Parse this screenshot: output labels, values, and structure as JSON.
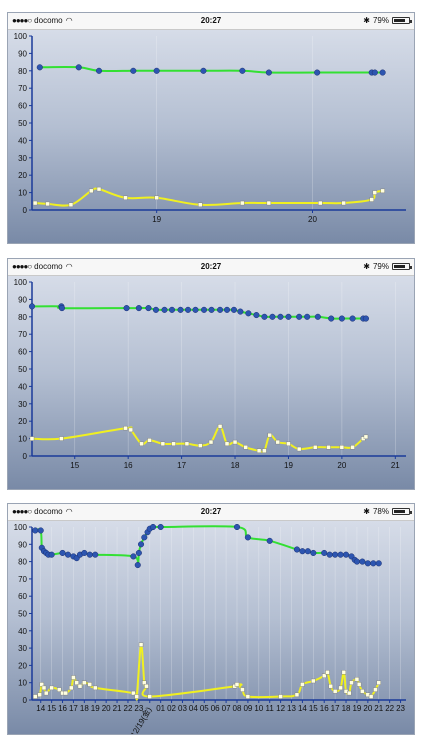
{
  "phones": [
    {
      "carrier": "docomo",
      "time": "20:27",
      "battery": "79%",
      "battery_level": 0.79
    },
    {
      "carrier": "docomo",
      "time": "20:27",
      "battery": "79%",
      "battery_level": 0.79
    },
    {
      "carrier": "docomo",
      "time": "20:27",
      "battery": "78%",
      "battery_level": 0.78
    }
  ],
  "colors": {
    "upper_line": "#33e033",
    "lower_line": "#f0f020",
    "marker_upper": "#2d55b0",
    "marker_lower": "#ffffe0",
    "axis": "#1a3a9a"
  },
  "chart_data": [
    {
      "type": "line",
      "ylim": [
        0,
        100
      ],
      "yticks": [
        0,
        10,
        20,
        30,
        40,
        50,
        60,
        70,
        80,
        90,
        100
      ],
      "xlim": [
        18.2,
        20.6
      ],
      "xticks": [
        {
          "x": 19,
          "label": "19"
        },
        {
          "x": 20,
          "label": "20"
        }
      ],
      "grid": true,
      "series": [
        {
          "points": [
            [
              18.25,
              82
            ],
            [
              18.5,
              82
            ],
            [
              18.63,
              80
            ],
            [
              18.85,
              80
            ],
            [
              19.0,
              80
            ],
            [
              19.3,
              80
            ],
            [
              19.55,
              80
            ],
            [
              19.72,
              79
            ],
            [
              20.03,
              79
            ],
            [
              20.38,
              79
            ],
            [
              20.4,
              79
            ],
            [
              20.45,
              79
            ]
          ]
        },
        {
          "points": [
            [
              18.22,
              4
            ],
            [
              18.3,
              3.5
            ],
            [
              18.45,
              3
            ],
            [
              18.58,
              11
            ],
            [
              18.63,
              12
            ],
            [
              18.8,
              7
            ],
            [
              19.0,
              7
            ],
            [
              19.28,
              3
            ],
            [
              19.55,
              4
            ],
            [
              19.72,
              4
            ],
            [
              20.05,
              4
            ],
            [
              20.2,
              4
            ],
            [
              20.38,
              6
            ],
            [
              20.4,
              10
            ],
            [
              20.45,
              11
            ]
          ]
        }
      ]
    },
    {
      "type": "line",
      "ylim": [
        0,
        100
      ],
      "yticks": [
        0,
        10,
        20,
        30,
        40,
        50,
        60,
        70,
        80,
        90,
        100
      ],
      "xlim": [
        14.2,
        21.2
      ],
      "xticks": [
        {
          "x": 15,
          "label": "15"
        },
        {
          "x": 16,
          "label": "16"
        },
        {
          "x": 17,
          "label": "17"
        },
        {
          "x": 18,
          "label": "18"
        },
        {
          "x": 19,
          "label": "19"
        },
        {
          "x": 20,
          "label": "20"
        },
        {
          "x": 21,
          "label": "21"
        }
      ],
      "grid": true,
      "series": [
        {
          "points": [
            [
              14.2,
              86
            ],
            [
              14.75,
              86
            ],
            [
              14.76,
              85
            ],
            [
              15.97,
              85
            ],
            [
              16.2,
              85
            ],
            [
              16.38,
              85
            ],
            [
              16.52,
              84
            ],
            [
              16.68,
              84
            ],
            [
              16.82,
              84
            ],
            [
              16.98,
              84
            ],
            [
              17.12,
              84
            ],
            [
              17.26,
              84
            ],
            [
              17.42,
              84
            ],
            [
              17.56,
              84
            ],
            [
              17.72,
              84
            ],
            [
              17.85,
              84
            ],
            [
              17.98,
              84
            ],
            [
              18.1,
              83
            ],
            [
              18.25,
              82
            ],
            [
              18.4,
              81
            ],
            [
              18.55,
              80
            ],
            [
              18.7,
              80
            ],
            [
              18.85,
              80
            ],
            [
              19.0,
              80
            ],
            [
              19.2,
              80
            ],
            [
              19.35,
              80
            ],
            [
              19.55,
              80
            ],
            [
              19.8,
              79
            ],
            [
              20.0,
              79
            ],
            [
              20.2,
              79
            ],
            [
              20.4,
              79
            ],
            [
              20.45,
              79
            ]
          ]
        },
        {
          "points": [
            [
              14.2,
              10
            ],
            [
              14.75,
              10
            ],
            [
              15.95,
              16
            ],
            [
              16.05,
              15
            ],
            [
              16.25,
              7
            ],
            [
              16.4,
              9
            ],
            [
              16.65,
              7
            ],
            [
              16.85,
              7
            ],
            [
              17.1,
              7
            ],
            [
              17.35,
              6
            ],
            [
              17.55,
              8
            ],
            [
              17.72,
              17
            ],
            [
              17.85,
              7
            ],
            [
              18.0,
              8
            ],
            [
              18.2,
              5
            ],
            [
              18.45,
              3
            ],
            [
              18.55,
              3
            ],
            [
              18.65,
              12
            ],
            [
              18.8,
              8
            ],
            [
              19.0,
              7
            ],
            [
              19.2,
              4
            ],
            [
              19.5,
              5
            ],
            [
              19.75,
              5
            ],
            [
              20.0,
              5
            ],
            [
              20.2,
              5
            ],
            [
              20.4,
              10
            ],
            [
              20.45,
              11
            ]
          ]
        }
      ]
    },
    {
      "type": "line",
      "ylim": [
        0,
        100
      ],
      "yticks": [
        0,
        10,
        20,
        30,
        40,
        50,
        60,
        70,
        80,
        90,
        100
      ],
      "xlim": [
        13.2,
        47.5
      ],
      "xticks": [
        {
          "x": 14,
          "label": "14"
        },
        {
          "x": 15,
          "label": "15"
        },
        {
          "x": 16,
          "label": "16"
        },
        {
          "x": 17,
          "label": "17"
        },
        {
          "x": 18,
          "label": "18"
        },
        {
          "x": 19,
          "label": "19"
        },
        {
          "x": 20,
          "label": "20"
        },
        {
          "x": 21,
          "label": "21"
        },
        {
          "x": 22,
          "label": "22"
        },
        {
          "x": 23,
          "label": "23"
        },
        {
          "x": 24,
          "label": "12/19(金)"
        },
        {
          "x": 25,
          "label": "01"
        },
        {
          "x": 26,
          "label": "02"
        },
        {
          "x": 27,
          "label": "03"
        },
        {
          "x": 28,
          "label": "04"
        },
        {
          "x": 29,
          "label": "05"
        },
        {
          "x": 30,
          "label": "06"
        },
        {
          "x": 31,
          "label": "07"
        },
        {
          "x": 32,
          "label": "08"
        },
        {
          "x": 33,
          "label": "09"
        },
        {
          "x": 34,
          "label": "10"
        },
        {
          "x": 35,
          "label": "11"
        },
        {
          "x": 36,
          "label": "12"
        },
        {
          "x": 37,
          "label": "13"
        },
        {
          "x": 38,
          "label": "14"
        },
        {
          "x": 39,
          "label": "15"
        },
        {
          "x": 40,
          "label": "16"
        },
        {
          "x": 41,
          "label": "17"
        },
        {
          "x": 42,
          "label": "18"
        },
        {
          "x": 43,
          "label": "19"
        },
        {
          "x": 44,
          "label": "20"
        },
        {
          "x": 45,
          "label": "21"
        },
        {
          "x": 46,
          "label": "22"
        },
        {
          "x": 47,
          "label": "23"
        }
      ],
      "grid": true,
      "series": [
        {
          "points": [
            [
              13.5,
              98
            ],
            [
              14.0,
              98
            ],
            [
              14.1,
              88
            ],
            [
              14.3,
              86
            ],
            [
              14.5,
              85
            ],
            [
              14.7,
              84
            ],
            [
              15.0,
              84
            ],
            [
              16.0,
              85
            ],
            [
              16.5,
              84
            ],
            [
              17.0,
              83
            ],
            [
              17.3,
              82
            ],
            [
              17.6,
              84
            ],
            [
              18.0,
              85
            ],
            [
              18.5,
              84
            ],
            [
              19.0,
              84
            ],
            [
              22.5,
              83
            ],
            [
              22.9,
              78
            ],
            [
              23.0,
              85
            ],
            [
              23.2,
              90
            ],
            [
              23.5,
              94
            ],
            [
              23.8,
              97
            ],
            [
              24.0,
              99
            ],
            [
              24.3,
              100
            ],
            [
              25.0,
              100
            ],
            [
              32.0,
              100
            ],
            [
              33.0,
              94
            ],
            [
              35.0,
              92
            ],
            [
              37.5,
              87
            ],
            [
              38.0,
              86
            ],
            [
              38.5,
              86
            ],
            [
              39.0,
              85
            ],
            [
              40.0,
              85
            ],
            [
              40.5,
              84
            ],
            [
              41.0,
              84
            ],
            [
              41.5,
              84
            ],
            [
              42.0,
              84
            ],
            [
              42.5,
              83
            ],
            [
              42.8,
              81
            ],
            [
              43.0,
              80
            ],
            [
              43.5,
              80
            ],
            [
              44.0,
              79
            ],
            [
              44.5,
              79
            ],
            [
              45.0,
              79
            ]
          ]
        },
        {
          "points": [
            [
              13.5,
              2
            ],
            [
              13.9,
              3
            ],
            [
              14.1,
              9
            ],
            [
              14.3,
              7
            ],
            [
              14.5,
              4
            ],
            [
              15.0,
              7
            ],
            [
              15.7,
              6
            ],
            [
              16.0,
              4
            ],
            [
              16.3,
              4
            ],
            [
              16.8,
              7
            ],
            [
              17.0,
              13
            ],
            [
              17.3,
              10
            ],
            [
              17.6,
              8
            ],
            [
              18.0,
              10
            ],
            [
              18.5,
              9
            ],
            [
              19.0,
              7
            ],
            [
              22.5,
              4
            ],
            [
              22.8,
              2
            ],
            [
              23.2,
              32
            ],
            [
              23.5,
              10
            ],
            [
              23.7,
              8
            ],
            [
              24.0,
              2
            ],
            [
              31.8,
              8
            ],
            [
              32.0,
              9
            ],
            [
              32.5,
              6
            ],
            [
              33.0,
              2
            ],
            [
              36.0,
              2
            ],
            [
              37.5,
              3
            ],
            [
              38.0,
              9
            ],
            [
              39.0,
              11
            ],
            [
              40.0,
              14
            ],
            [
              40.3,
              16
            ],
            [
              40.6,
              8
            ],
            [
              41.0,
              5
            ],
            [
              41.5,
              7
            ],
            [
              41.8,
              16
            ],
            [
              42.0,
              5
            ],
            [
              42.3,
              4
            ],
            [
              42.5,
              10
            ],
            [
              43.0,
              12
            ],
            [
              43.2,
              9
            ],
            [
              43.5,
              5
            ],
            [
              44.0,
              3
            ],
            [
              44.3,
              2
            ],
            [
              44.7,
              6
            ],
            [
              45.0,
              10
            ]
          ]
        }
      ]
    }
  ]
}
